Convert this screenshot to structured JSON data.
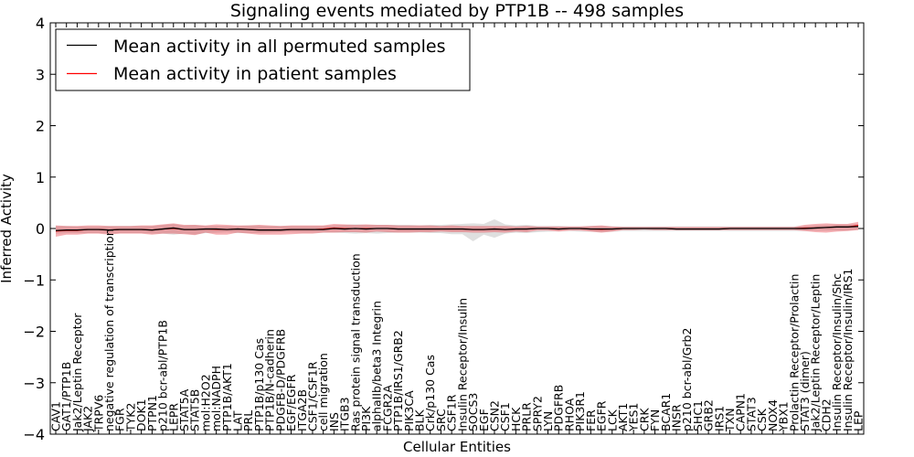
{
  "chart_data": {
    "type": "line",
    "title": "Signaling events mediated by PTP1B -- 498 samples",
    "xlabel": "Cellular Entities",
    "ylabel": "Inferred Activity",
    "ylim": [
      -4,
      4
    ],
    "yticks": [
      4,
      3,
      2,
      1,
      0,
      -1,
      -2,
      -3,
      -4
    ],
    "ytick_labels": [
      "4",
      "3",
      "2",
      "1",
      "0",
      "−1",
      "−2",
      "−3",
      "−4"
    ],
    "legend": {
      "placement": "top-left",
      "entries": [
        {
          "label": "Mean activity in all permuted samples",
          "color": "#000000"
        },
        {
          "label": "Mean activity in patient samples",
          "color": "#ff0000"
        }
      ]
    },
    "categories": [
      "CAV1",
      "GAT1/PTP1B",
      "Jak2/Leptin Receptor",
      "JAK2",
      "TRPV6",
      "negative regulation of transcription",
      "FGR",
      "TYK2",
      "DOK1",
      "PTPN1",
      "p210 bcr-abl/PTP1B",
      "LEPR",
      "STAT5A",
      "STAT5B",
      "mol:H2O2",
      "mol:NADPH",
      "PTP1B/AKT1",
      "LAT",
      "PRL",
      "PTP1B/p130 Cas",
      "PTP1B/N-cadherin",
      "PDGFB-D/PDGFRB",
      "EGF/EGFR",
      "ITGA2B",
      "CSF1/CSF1R",
      "cell migration",
      "INS",
      "ITGB3",
      "Ras protein signal transduction",
      "PI3K",
      "alphaIIb/beta3 Integrin",
      "FCGR2A",
      "PTP1B/IRS1/GRB2",
      "PIK3CA",
      "BLK",
      "Crk/p130 Cas",
      "SRC",
      "CSF1R",
      "Insulin Receptor/Insulin",
      "SOCS3",
      "EGF",
      "CSN2",
      "CSF1",
      "HCK",
      "PRLR",
      "SPRY2",
      "LYN",
      "PDGFRB",
      "RHOA",
      "PIK3R1",
      "FER",
      "EGFR",
      "LCK",
      "AKT1",
      "YES1",
      "CRK",
      "FYN",
      "BCAR1",
      "INSR",
      "p210 bcr-abl/Grb2",
      "SHC1",
      "GRB2",
      "IRS1",
      "TXN",
      "CAPN1",
      "STAT3",
      "CSK",
      "NOX4",
      "YBX1",
      "Prolactin Receptor/Prolactin",
      "STAT3 (dimer)",
      "Jak2/Leptin Receptor/Leptin",
      "CDH2",
      "Insulin Receptor/Insulin/Shc",
      "Insulin Receptor/Insulin/IRS1",
      "LEP"
    ],
    "series": [
      {
        "name": "Mean activity in all permuted samples",
        "color": "#000000",
        "values": [
          -0.04,
          -0.03,
          -0.03,
          -0.02,
          -0.02,
          -0.03,
          -0.02,
          -0.02,
          -0.02,
          -0.03,
          -0.01,
          0.01,
          -0.02,
          -0.02,
          -0.01,
          -0.01,
          -0.02,
          -0.01,
          -0.02,
          -0.03,
          -0.03,
          -0.03,
          -0.02,
          -0.02,
          -0.02,
          -0.02,
          0.0,
          -0.01,
          0.0,
          -0.01,
          0.0,
          0.0,
          -0.01,
          -0.01,
          -0.01,
          -0.01,
          -0.01,
          -0.01,
          -0.01,
          -0.02,
          -0.02,
          -0.01,
          -0.02,
          -0.01,
          -0.01,
          0.0,
          0.0,
          -0.01,
          0.0,
          0.0,
          -0.01,
          -0.01,
          -0.01,
          0.0,
          0.0,
          0.0,
          0.0,
          0.0,
          -0.01,
          -0.01,
          -0.01,
          -0.01,
          -0.01,
          0.0,
          0.0,
          0.0,
          0.0,
          0.0,
          0.0,
          0.0,
          0.0,
          0.01,
          0.02,
          0.03,
          0.03,
          0.04
        ],
        "lower": [
          -0.1,
          -0.09,
          -0.09,
          -0.09,
          -0.09,
          -0.1,
          -0.09,
          -0.09,
          -0.09,
          -0.1,
          -0.1,
          -0.12,
          -0.1,
          -0.12,
          -0.09,
          -0.08,
          -0.07,
          -0.09,
          -0.09,
          -0.09,
          -0.08,
          -0.07,
          -0.07,
          -0.08,
          -0.08,
          -0.08,
          -0.08,
          -0.09,
          -0.1,
          -0.09,
          -0.1,
          -0.09,
          -0.08,
          -0.08,
          -0.08,
          -0.09,
          -0.09,
          -0.11,
          -0.11,
          -0.25,
          -0.12,
          -0.18,
          -0.1,
          -0.08,
          -0.09,
          -0.07,
          -0.06,
          -0.05,
          -0.05,
          -0.06,
          -0.06,
          -0.07,
          -0.06,
          -0.05,
          -0.05,
          -0.05,
          -0.05,
          -0.05,
          -0.05,
          -0.05,
          -0.05,
          -0.05,
          -0.05,
          -0.05,
          -0.05,
          -0.05,
          -0.05,
          -0.05,
          -0.05,
          -0.05,
          -0.05,
          -0.04,
          -0.04,
          -0.04,
          -0.04,
          -0.02
        ],
        "upper": [
          0.05,
          0.05,
          0.04,
          0.04,
          0.04,
          0.05,
          0.05,
          0.05,
          0.05,
          0.05,
          0.07,
          0.09,
          0.06,
          0.07,
          0.05,
          0.05,
          0.05,
          0.05,
          0.06,
          0.06,
          0.05,
          0.05,
          0.05,
          0.05,
          0.05,
          0.05,
          0.06,
          0.07,
          0.08,
          0.07,
          0.07,
          0.07,
          0.07,
          0.07,
          0.06,
          0.07,
          0.07,
          0.08,
          0.09,
          0.1,
          0.09,
          0.18,
          0.08,
          0.06,
          0.07,
          0.05,
          0.05,
          0.05,
          0.04,
          0.04,
          0.05,
          0.05,
          0.04,
          0.04,
          0.04,
          0.04,
          0.04,
          0.04,
          0.04,
          0.04,
          0.04,
          0.04,
          0.04,
          0.04,
          0.04,
          0.04,
          0.04,
          0.04,
          0.04,
          0.04,
          0.05,
          0.06,
          0.07,
          0.08,
          0.08,
          0.09
        ]
      },
      {
        "name": "Mean activity in patient samples",
        "color": "#ff0000",
        "values": [
          -0.05,
          -0.04,
          -0.04,
          -0.02,
          -0.02,
          -0.03,
          -0.02,
          -0.02,
          -0.02,
          -0.03,
          -0.01,
          0.0,
          -0.02,
          -0.02,
          -0.01,
          -0.02,
          -0.02,
          -0.01,
          -0.02,
          -0.03,
          -0.03,
          -0.03,
          -0.02,
          -0.02,
          -0.02,
          -0.01,
          0.01,
          0.0,
          0.0,
          0.0,
          0.0,
          0.0,
          -0.01,
          -0.01,
          -0.01,
          -0.01,
          -0.01,
          -0.01,
          -0.01,
          -0.02,
          -0.02,
          -0.01,
          -0.02,
          -0.01,
          -0.01,
          0.0,
          0.0,
          -0.01,
          0.0,
          0.0,
          -0.01,
          -0.02,
          -0.01,
          0.0,
          0.0,
          0.0,
          0.0,
          0.0,
          -0.01,
          -0.01,
          -0.01,
          -0.01,
          -0.01,
          0.0,
          0.0,
          0.0,
          0.0,
          0.0,
          0.0,
          0.0,
          0.01,
          0.01,
          0.02,
          0.03,
          0.03,
          0.06
        ],
        "lower": [
          -0.16,
          -0.12,
          -0.12,
          -0.1,
          -0.1,
          -0.12,
          -0.1,
          -0.1,
          -0.1,
          -0.12,
          -0.1,
          -0.1,
          -0.11,
          -0.13,
          -0.08,
          -0.12,
          -0.12,
          -0.08,
          -0.1,
          -0.12,
          -0.12,
          -0.12,
          -0.11,
          -0.1,
          -0.1,
          -0.08,
          -0.08,
          -0.07,
          -0.07,
          -0.08,
          -0.06,
          -0.07,
          -0.08,
          -0.08,
          -0.07,
          -0.07,
          -0.06,
          -0.07,
          -0.07,
          -0.08,
          -0.08,
          -0.07,
          -0.08,
          -0.06,
          -0.07,
          -0.04,
          -0.04,
          -0.06,
          -0.04,
          -0.04,
          -0.06,
          -0.08,
          -0.06,
          -0.03,
          -0.03,
          -0.02,
          -0.03,
          -0.03,
          -0.03,
          -0.03,
          -0.03,
          -0.03,
          -0.03,
          -0.03,
          -0.03,
          -0.03,
          -0.03,
          -0.03,
          -0.03,
          -0.03,
          -0.05,
          -0.07,
          -0.08,
          -0.06,
          -0.05,
          -0.03
        ],
        "upper": [
          0.06,
          0.05,
          0.05,
          0.06,
          0.06,
          0.05,
          0.05,
          0.05,
          0.06,
          0.06,
          0.08,
          0.1,
          0.07,
          0.07,
          0.06,
          0.08,
          0.07,
          0.06,
          0.06,
          0.07,
          0.06,
          0.05,
          0.06,
          0.06,
          0.06,
          0.06,
          0.09,
          0.08,
          0.07,
          0.08,
          0.07,
          0.07,
          0.06,
          0.06,
          0.06,
          0.06,
          0.05,
          0.06,
          0.05,
          0.05,
          0.05,
          0.05,
          0.05,
          0.04,
          0.05,
          0.04,
          0.04,
          0.04,
          0.04,
          0.04,
          0.05,
          0.06,
          0.04,
          0.03,
          0.03,
          0.03,
          0.03,
          0.03,
          0.03,
          0.03,
          0.03,
          0.03,
          0.03,
          0.03,
          0.03,
          0.03,
          0.03,
          0.03,
          0.03,
          0.03,
          0.07,
          0.09,
          0.1,
          0.09,
          0.09,
          0.13
        ]
      }
    ]
  }
}
